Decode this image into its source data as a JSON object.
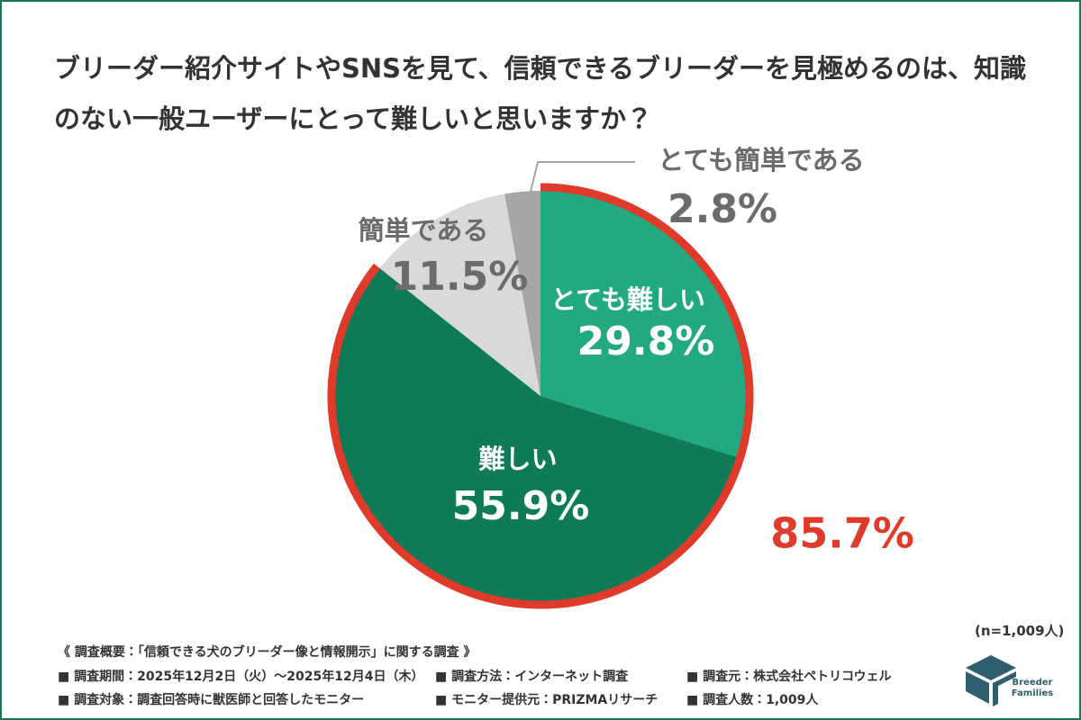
{
  "chart_data": {
    "type": "pie",
    "title": "ブリーダー紹介サイトやSNSを見て、信頼できるブリーダーを見極めるのは、知識のない一般ユーザーにとって難しいと思いますか？",
    "categories": [
      "とても難しい",
      "難しい",
      "簡単である",
      "とても簡単である"
    ],
    "values": [
      29.8,
      55.9,
      11.5,
      2.8
    ],
    "value_labels": [
      "29.8%",
      "55.9%",
      "11.5%",
      "2.8%"
    ],
    "colors": [
      "#22a97f",
      "#0e7a57",
      "#d9d9d9",
      "#a6a6a6"
    ],
    "highlight": {
      "value": 85.7,
      "label": "85.7%",
      "color": "#e03a2b"
    },
    "sample_size": "(n=1,009人)",
    "notes": [
      "《 調査概要：「信頼できる犬のブリーダー像と情報開示」に関する調査 》",
      "■ 調査期間：2025年12月2日（火）～2025年12月4日（木）",
      "■ 調査方法：インターネット調査",
      "■ 調査元：株式会社ペトリコウェル",
      "■ 調査対象：調査回答時に獣医師と回答したモニター",
      "■ モニター提供元：PRIZMAリサーチ",
      "■ 調査人数：1,009人"
    ],
    "logo_text": [
      "Breeder",
      "Families"
    ]
  }
}
